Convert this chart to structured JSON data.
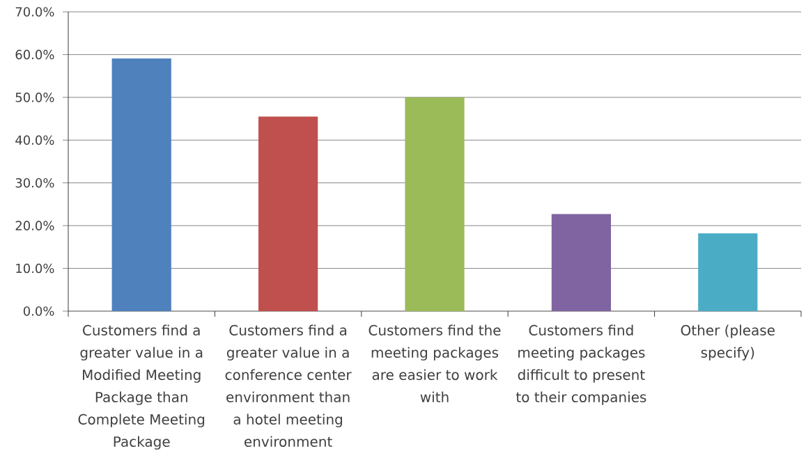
{
  "chart_data": {
    "type": "bar",
    "categories": [
      "Customers find a greater value in a Modified Meeting Package than Complete Meeting Package",
      "Customers find a greater value in a conference center environment than a hotel meeting environment",
      "Customers find the meeting packages are easier to work with",
      "Customers find meeting packages difficult to present to their companies",
      "Other (please specify)"
    ],
    "values": [
      59.1,
      45.5,
      50.0,
      22.7,
      18.2
    ],
    "colors": [
      "#4f81bd",
      "#c0504d",
      "#9bbb59",
      "#8064a2",
      "#4bacc6"
    ],
    "ylim": [
      0,
      70
    ],
    "yticks": [
      {
        "value": 0,
        "label": "0.0%"
      },
      {
        "value": 10,
        "label": "10.0%"
      },
      {
        "value": 20,
        "label": "20.0%"
      },
      {
        "value": 30,
        "label": "30.0%"
      },
      {
        "value": 40,
        "label": "40.0%"
      },
      {
        "value": 50,
        "label": "50.0%"
      },
      {
        "value": 60,
        "label": "60.0%"
      },
      {
        "value": 70,
        "label": "70.0%"
      }
    ],
    "grid": "y"
  }
}
